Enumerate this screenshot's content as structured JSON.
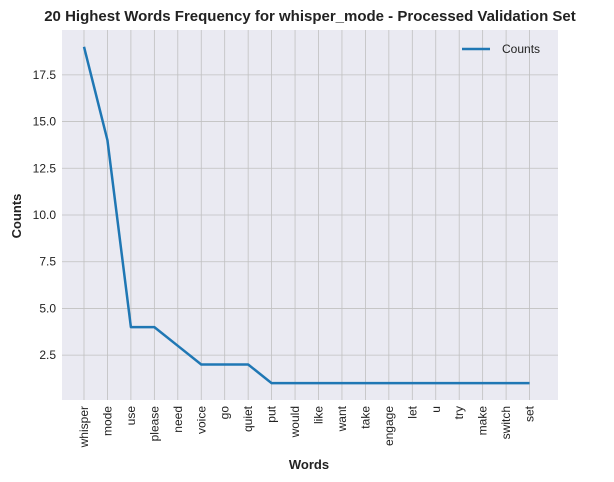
{
  "chart_data": {
    "type": "line",
    "title": "20 Highest Words Frequency for whisper_mode - Processed Validation Set",
    "xlabel": "Words",
    "ylabel": "Counts",
    "categories": [
      "whisper",
      "mode",
      "use",
      "please",
      "need",
      "voice",
      "go",
      "quiet",
      "put",
      "would",
      "like",
      "want",
      "take",
      "engage",
      "let",
      "u",
      "try",
      "make",
      "switch",
      "set"
    ],
    "series": [
      {
        "name": "Counts",
        "values": [
          19,
          14,
          4,
          4,
          3,
          2,
          2,
          2,
          1,
          1,
          1,
          1,
          1,
          1,
          1,
          1,
          1,
          1,
          1,
          1
        ],
        "color": "#1f77b4"
      }
    ],
    "ylim": [
      0.1,
      19.9
    ],
    "yticks": [
      "2.5",
      "5.0",
      "7.5",
      "10.0",
      "12.5",
      "15.0",
      "17.5"
    ],
    "grid": true,
    "legend": "top-right",
    "background": "#eaeaf2",
    "grid_color": "#c0c0c0"
  }
}
